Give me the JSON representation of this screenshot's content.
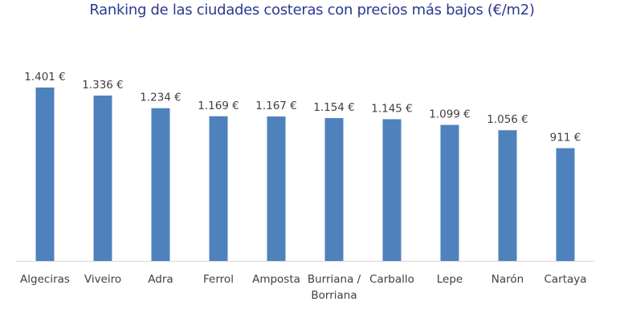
{
  "chart_data": {
    "type": "bar",
    "title": "Ranking de las ciudades costeras con precios más bajos (€/m2)",
    "categories": [
      "Algeciras",
      "Viveiro",
      "Adra",
      "Ferrol",
      "Amposta",
      "Burriana / Borriana",
      "Carballo",
      "Lepe",
      "Narón",
      "Cartaya"
    ],
    "values": [
      1401,
      1336,
      1234,
      1169,
      1167,
      1154,
      1145,
      1099,
      1056,
      911
    ],
    "data_labels": [
      "1.401 €",
      "1.336 €",
      "1.234 €",
      "1.169 €",
      "1.167 €",
      "1.154 €",
      "1.145 €",
      "1.099 €",
      "1.056 €",
      "911 €"
    ],
    "xlabel": "",
    "ylabel": "",
    "ylim": [
      0,
      1401
    ],
    "grid": false,
    "legend": "none",
    "bar_color": "#4f81bd",
    "axis_color": "#d9d9d9"
  }
}
